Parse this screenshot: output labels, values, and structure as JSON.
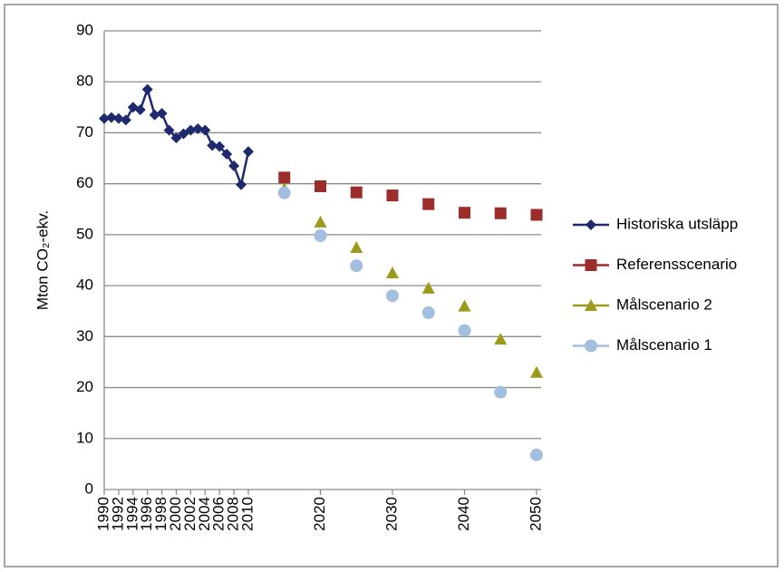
{
  "chart_data": {
    "type": "line",
    "ylabel": "Mton CO₂-ekv.",
    "xlim": [
      1990,
      2050
    ],
    "ylim": [
      0,
      90
    ],
    "xticks": [
      1990,
      1992,
      1994,
      1996,
      1998,
      2000,
      2002,
      2004,
      2006,
      2008,
      2010,
      2020,
      2030,
      2040,
      2050
    ],
    "yticks": [
      0,
      10,
      20,
      30,
      40,
      50,
      60,
      70,
      80,
      90
    ],
    "grid": true,
    "legend": "right",
    "series": [
      {
        "name": "Historiska utsläpp",
        "color": "#1f2a6e",
        "marker": "diamond",
        "line": true,
        "x": [
          1990,
          1991,
          1992,
          1993,
          1994,
          1995,
          1996,
          1997,
          1998,
          1999,
          2000,
          2001,
          2002,
          2003,
          2004,
          2005,
          2006,
          2007,
          2008,
          2009,
          2010
        ],
        "values": [
          72.8,
          73.0,
          72.8,
          72.5,
          75.0,
          74.5,
          78.5,
          73.5,
          73.8,
          70.5,
          69.0,
          69.8,
          70.5,
          70.8,
          70.5,
          67.5,
          67.3,
          65.8,
          63.5,
          59.8,
          66.3
        ]
      },
      {
        "name": "Referensscenario",
        "color": "#9b2d2a",
        "marker": "square",
        "line": false,
        "x": [
          2015,
          2020,
          2025,
          2030,
          2035,
          2040,
          2045,
          2050
        ],
        "values": [
          61.2,
          59.5,
          58.3,
          57.7,
          56.0,
          54.3,
          54.2,
          53.9
        ]
      },
      {
        "name": "Målscenario 2",
        "color": "#9c9a1a",
        "marker": "triangle",
        "line": false,
        "x": [
          2015,
          2020,
          2025,
          2030,
          2035,
          2040,
          2045,
          2050
        ],
        "values": [
          59.0,
          52.5,
          47.5,
          42.5,
          39.5,
          36.0,
          29.5,
          23.0
        ]
      },
      {
        "name": "Målscenario 1",
        "color": "#a3bfdf",
        "marker": "circle",
        "line": false,
        "x": [
          2015,
          2020,
          2025,
          2030,
          2035,
          2040,
          2045,
          2050
        ],
        "values": [
          58.2,
          49.8,
          43.9,
          38.0,
          34.7,
          31.2,
          19.1,
          6.8
        ]
      }
    ]
  }
}
